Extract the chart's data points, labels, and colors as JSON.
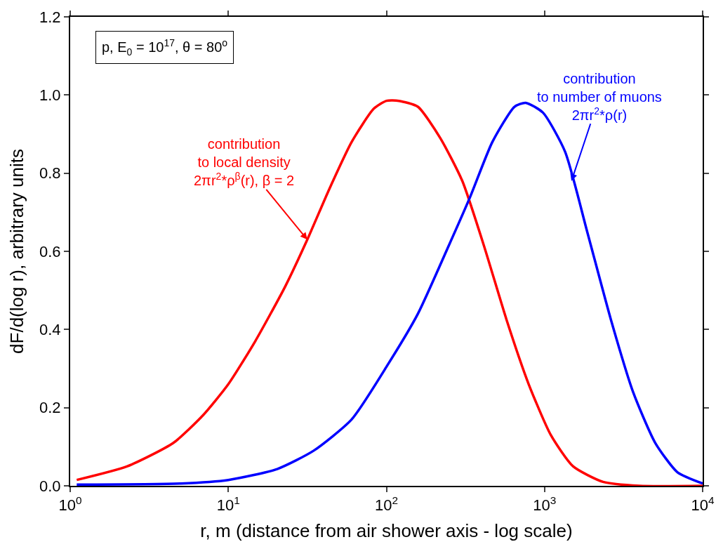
{
  "chart_data": {
    "type": "line",
    "xlabel": "r, m (distance from air shower axis - log scale)",
    "ylabel": "dF/d(log r), arbitrary units",
    "log": "x",
    "marker": "none",
    "line_style": "solid",
    "xlim": [
      1,
      10000
    ],
    "xticks": [
      {
        "value": 1,
        "label": "10$^{0}$"
      },
      {
        "value": 10,
        "label": "10$^{1}$"
      },
      {
        "value": 100,
        "label": "10$^{2}$"
      },
      {
        "value": 1000,
        "label": "10$^{3}$"
      },
      {
        "value": 10000,
        "label": "10$^{4}$"
      }
    ],
    "ylim": [
      0,
      1.2
    ],
    "yticks": [
      {
        "value": 0,
        "label": "0.0"
      },
      {
        "value": 0.2,
        "label": "0.2"
      },
      {
        "value": 0.4,
        "label": "0.4"
      },
      {
        "value": 0.6,
        "label": "0.6"
      },
      {
        "value": 0.8,
        "label": "0.8"
      },
      {
        "value": 1.0,
        "label": "1.0"
      },
      {
        "value": 1.2,
        "label": "1.2"
      }
    ],
    "series": [
      {
        "color": "#ff0000",
        "x": [
          1.1,
          2.3,
          4.5,
          6.9,
          10,
          14.8,
          22.9,
          31.6,
          43.6,
          60.3,
          83.2,
          100,
          120,
          158,
          219,
          302,
          417,
          575,
          794,
          1096,
          1514,
          2344,
          3981,
          10000
        ],
        "values": [
          0.015,
          0.05,
          0.11,
          0.18,
          0.26,
          0.37,
          0.51,
          0.63,
          0.76,
          0.88,
          0.965,
          0.985,
          0.985,
          0.97,
          0.89,
          0.78,
          0.61,
          0.425,
          0.26,
          0.13,
          0.05,
          0.01,
          0.0,
          0.0
        ]
      },
      {
        "color": "#0000ff",
        "x": [
          1.1,
          5.0,
          10,
          20.4,
          34.7,
          60.3,
          102,
          158,
          245,
          339,
          468,
          646,
          759,
          977,
          1349,
          1862,
          2630,
          3631,
          5012,
          6918,
          10000
        ],
        "values": [
          0.003,
          0.006,
          0.015,
          0.043,
          0.09,
          0.17,
          0.31,
          0.44,
          0.61,
          0.74,
          0.88,
          0.97,
          0.98,
          0.955,
          0.855,
          0.65,
          0.425,
          0.24,
          0.11,
          0.035,
          0.006
        ]
      }
    ],
    "annotations": [
      "p, E$_{0}$ = 10$^{17}$, θ = 80$^{o}$",
      {
        "text": "contribution\nto local density\n2πr$^{2}$*ρ$^{β}$(r), β = 2",
        "x": 31.6,
        "y": 0.63
      },
      {
        "text": "contribution\nto number of muons\n2πr$^{2}$*ρ(r)",
        "x": 1480,
        "y": 0.78
      }
    ]
  }
}
